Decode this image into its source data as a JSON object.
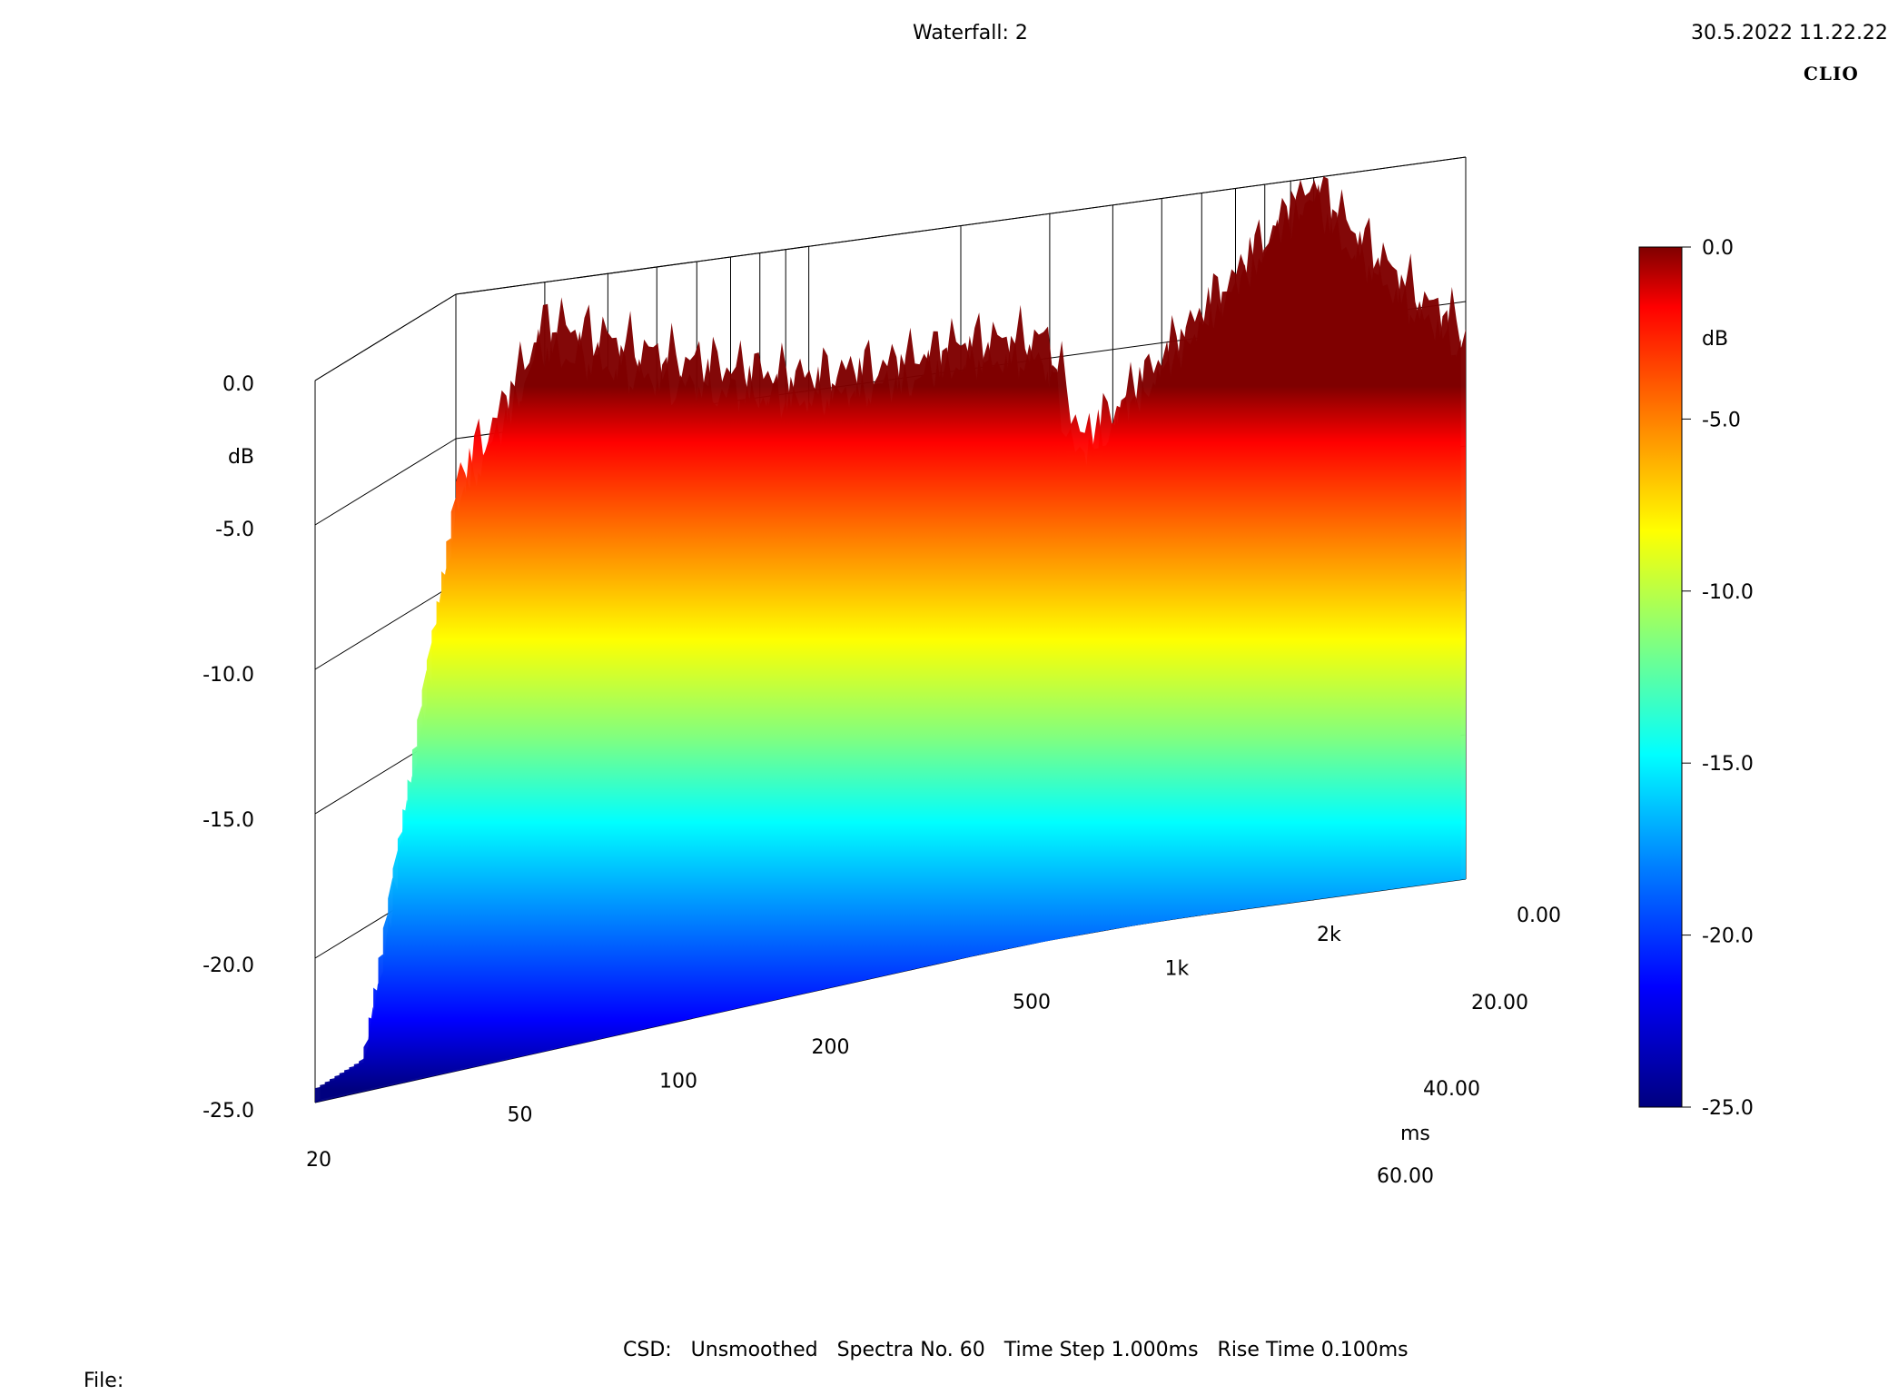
{
  "header": {
    "title": "Waterfall: 2",
    "timestamp": "30.5.2022 11.22.22",
    "brand": "CLIO"
  },
  "footer": {
    "info": "CSD:   Unsmoothed   Spectra No. 60   Time Step 1.000ms   Rise Time 0.100ms",
    "file_label": "File:"
  },
  "chart_data": {
    "type": "waterfall",
    "title": "Waterfall: 2",
    "z_label": "dB",
    "z_ticks": [
      "0.0",
      "-5.0",
      "-10.0",
      "-15.0",
      "-20.0",
      "-25.0"
    ],
    "zlim": [
      -25,
      0
    ],
    "x_ticks": [
      "20",
      "50",
      "100",
      "200",
      "500",
      "1k",
      "2k"
    ],
    "x_scale": "log",
    "xlim": [
      20,
      2000
    ],
    "y_label": "ms",
    "y_ticks": [
      "0.00",
      "20.00",
      "40.00",
      "60.00"
    ],
    "ylim": [
      0,
      60
    ],
    "spectra_count": 60,
    "colorbar": {
      "label": "dB",
      "ticks": [
        "0.0",
        "-5.0",
        "-10.0",
        "-15.0",
        "-20.0",
        "-25.0"
      ],
      "colors": [
        "#7f0000",
        "#ff0000",
        "#ff8000",
        "#ffff00",
        "#80ff80",
        "#00ffff",
        "#0080ff",
        "#0000ff",
        "#00007f"
      ]
    },
    "first_spectrum_db": [
      {
        "f": 20,
        "db": -6.5
      },
      {
        "f": 25,
        "db": -4.0
      },
      {
        "f": 30,
        "db": -1.3
      },
      {
        "f": 40,
        "db": -2.2
      },
      {
        "f": 50,
        "db": -3.0
      },
      {
        "f": 70,
        "db": -3.8
      },
      {
        "f": 100,
        "db": -4.5
      },
      {
        "f": 150,
        "db": -4.4
      },
      {
        "f": 200,
        "db": -4.0
      },
      {
        "f": 300,
        "db": -4.3
      },
      {
        "f": 350,
        "db": -8.0
      },
      {
        "f": 500,
        "db": -5.5
      },
      {
        "f": 700,
        "db": -3.0
      },
      {
        "f": 1000,
        "db": 0.0
      },
      {
        "f": 1200,
        "db": -2.0
      },
      {
        "f": 1600,
        "db": -4.5
      },
      {
        "f": 2000,
        "db": -6.0
      }
    ],
    "decay_db_per_ms": 0.28,
    "floor_db": -25
  }
}
